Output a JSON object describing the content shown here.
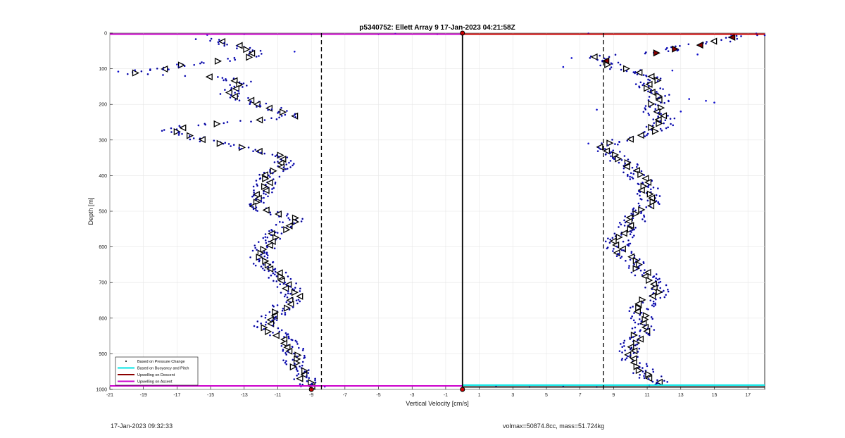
{
  "chart_data": {
    "type": "scatter",
    "title": "p5340752: Ellett Array 9 17-Jan-2023 04:21:58Z",
    "xlabel": "Vertical Velocity [cm/s]",
    "ylabel": "Depth [m]",
    "xlim": [
      -21,
      18
    ],
    "ylim": [
      0,
      1000
    ],
    "y_reversed": true,
    "grid": true,
    "xticks": [
      -21,
      -19,
      -17,
      -15,
      -13,
      -11,
      -9,
      -7,
      -5,
      -3,
      -1,
      1,
      3,
      5,
      7,
      9,
      11,
      13,
      15,
      17
    ],
    "yticks": [
      0,
      100,
      200,
      300,
      400,
      500,
      600,
      700,
      800,
      900,
      1000
    ],
    "legend_position": "bottom-left",
    "legend": [
      {
        "label": "Based on Pressure Change",
        "color": "#000000",
        "marker": "dot"
      },
      {
        "label": "Based on Buoyancy and Pitch",
        "color": "#00e5e5",
        "marker": "line"
      },
      {
        "label": "Upwelling on Descent",
        "color": "#8b0000",
        "marker": "line"
      },
      {
        "label": "Upwelling on Ascent",
        "color": "#cc00cc",
        "marker": "line"
      }
    ],
    "vertical_lines": [
      {
        "x": -8.4,
        "style": "dashed",
        "color": "#000000"
      },
      {
        "x": 0,
        "style": "solid",
        "color": "#000000"
      },
      {
        "x": 8.4,
        "style": "dashed",
        "color": "#000000"
      }
    ],
    "horizontal_lines": [
      {
        "y": 3,
        "x0": -21,
        "x1": 0,
        "color": "#cc00cc"
      },
      {
        "y": 990,
        "x0": -21,
        "x1": 0,
        "color": "#cc00cc"
      },
      {
        "y": 3,
        "x0": 0,
        "x1": 18,
        "color": "#cc0000"
      },
      {
        "y": 988,
        "x0": 0,
        "x1": 18,
        "color": "#00e5e5"
      },
      {
        "y": 993,
        "x0": 0,
        "x1": 18,
        "color": "#222222"
      }
    ],
    "series": [
      {
        "color": "#1010cc",
        "profile": [
          [
            15,
            -15.5
          ],
          [
            40,
            -13.0
          ],
          [
            60,
            -12.2
          ],
          [
            75,
            -13.8
          ],
          [
            90,
            -16.5
          ],
          [
            105,
            -18.5
          ],
          [
            115,
            -19.5
          ],
          [
            125,
            -14.0
          ],
          [
            140,
            -13.0
          ],
          [
            160,
            -14.0
          ],
          [
            180,
            -13.5
          ],
          [
            200,
            -12.0
          ],
          [
            215,
            -11.0
          ],
          [
            235,
            -10.0
          ],
          [
            260,
            -16.0
          ],
          [
            270,
            -17.5
          ],
          [
            285,
            -16.5
          ],
          [
            300,
            -15.5
          ],
          [
            320,
            -13.0
          ],
          [
            340,
            -11.0
          ],
          [
            360,
            -10.5
          ],
          [
            380,
            -11.0
          ],
          [
            400,
            -11.5
          ],
          [
            420,
            -11.8
          ],
          [
            440,
            -11.8
          ],
          [
            460,
            -12.2
          ],
          [
            480,
            -12.5
          ],
          [
            500,
            -11.5
          ],
          [
            520,
            -10.0
          ],
          [
            540,
            -10.5
          ],
          [
            560,
            -11.0
          ],
          [
            580,
            -11.5
          ],
          [
            600,
            -11.8
          ],
          [
            620,
            -12.0
          ],
          [
            640,
            -12.0
          ],
          [
            660,
            -11.5
          ],
          [
            680,
            -11.0
          ],
          [
            700,
            -10.5
          ],
          [
            720,
            -10.3
          ],
          [
            740,
            -10.0
          ],
          [
            760,
            -10.5
          ],
          [
            780,
            -11.0
          ],
          [
            800,
            -11.5
          ],
          [
            820,
            -11.8
          ],
          [
            840,
            -11.2
          ],
          [
            860,
            -10.5
          ],
          [
            880,
            -10.2
          ],
          [
            900,
            -10.0
          ],
          [
            920,
            -10.0
          ],
          [
            940,
            -9.8
          ],
          [
            960,
            -9.6
          ],
          [
            980,
            -9.3
          ],
          [
            992,
            -9.0
          ]
        ],
        "spread": 0.7
      },
      {
        "color": "#1010cc",
        "profile": [
          [
            3,
            17.0
          ],
          [
            10,
            16.5
          ],
          [
            25,
            15.0
          ],
          [
            40,
            13.0
          ],
          [
            55,
            11.5
          ],
          [
            65,
            8.0
          ],
          [
            80,
            8.5
          ],
          [
            95,
            9.0
          ],
          [
            110,
            10.5
          ],
          [
            125,
            11.5
          ],
          [
            145,
            11.0
          ],
          [
            165,
            11.5
          ],
          [
            180,
            11.8
          ],
          [
            200,
            11.5
          ],
          [
            220,
            11.5
          ],
          [
            240,
            12.0
          ],
          [
            260,
            11.8
          ],
          [
            280,
            11.0
          ],
          [
            300,
            9.5
          ],
          [
            320,
            8.0
          ],
          [
            340,
            9.0
          ],
          [
            360,
            9.5
          ],
          [
            380,
            10.0
          ],
          [
            400,
            10.5
          ],
          [
            420,
            10.8
          ],
          [
            440,
            11.0
          ],
          [
            460,
            11.2
          ],
          [
            480,
            11.0
          ],
          [
            500,
            10.5
          ],
          [
            520,
            10.3
          ],
          [
            540,
            10.0
          ],
          [
            560,
            9.7
          ],
          [
            580,
            9.3
          ],
          [
            600,
            9.2
          ],
          [
            620,
            9.5
          ],
          [
            640,
            10.0
          ],
          [
            660,
            10.5
          ],
          [
            680,
            11.0
          ],
          [
            700,
            11.5
          ],
          [
            720,
            11.6
          ],
          [
            740,
            11.3
          ],
          [
            760,
            10.8
          ],
          [
            780,
            10.5
          ],
          [
            800,
            10.6
          ],
          [
            820,
            10.9
          ],
          [
            840,
            10.6
          ],
          [
            860,
            10.3
          ],
          [
            880,
            10.0
          ],
          [
            900,
            10.0
          ],
          [
            920,
            10.2
          ],
          [
            940,
            10.5
          ],
          [
            960,
            11.0
          ],
          [
            975,
            11.5
          ],
          [
            990,
            11.8
          ]
        ],
        "spread": 0.75
      }
    ],
    "outliers": [
      [
        -20.5,
        108
      ],
      [
        -19.5,
        104
      ],
      [
        -17.5,
        102
      ],
      [
        -17.0,
        88
      ],
      [
        -15.2,
        5
      ],
      [
        -13.0,
        3
      ],
      [
        -9.0,
        3
      ],
      [
        -5.0,
        3
      ],
      [
        -4.0,
        2
      ],
      [
        -1.5,
        3
      ],
      [
        -10.0,
        52
      ],
      [
        -10.0,
        230
      ],
      [
        -9.0,
        988
      ],
      [
        -8.2,
        992
      ],
      [
        7.5,
        1
      ],
      [
        15.0,
        195
      ],
      [
        14.5,
        190
      ],
      [
        13.0,
        220
      ],
      [
        13.5,
        185
      ],
      [
        6.5,
        70
      ],
      [
        6.0,
        95
      ],
      [
        7.5,
        310
      ],
      [
        8.0,
        215
      ],
      [
        2.0,
        992
      ],
      [
        4.0,
        993
      ],
      [
        6.0,
        992
      ],
      [
        8.0,
        993
      ],
      [
        16.0,
        5
      ],
      [
        17.5,
        1
      ],
      [
        18.0,
        6
      ],
      [
        14.0,
        60
      ],
      [
        12.5,
        105
      ]
    ],
    "triangle_step": 5
  },
  "footer": {
    "left": "17-Jan-2023 09:32:33",
    "right": "volmax=50874.8cc, mass=51.724kg"
  }
}
